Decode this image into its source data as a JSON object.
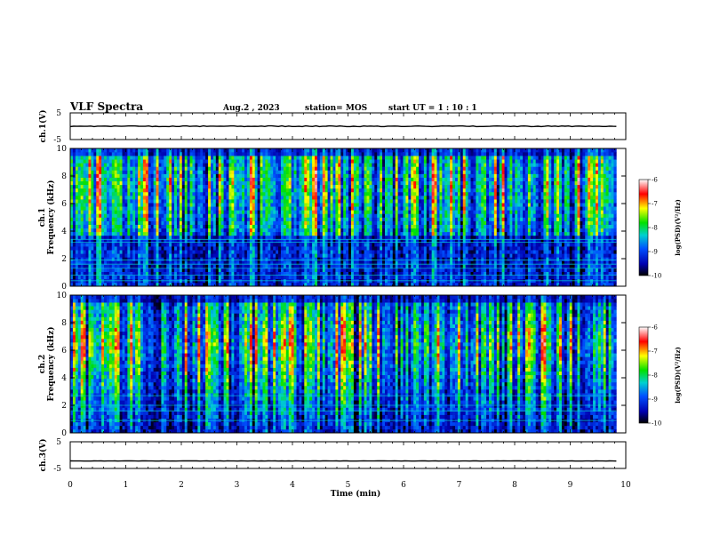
{
  "header": {
    "title": "VLF Spectra",
    "date": "Aug.2 , 2023",
    "station": "station= MOS",
    "start": "start UT = 1 : 10 : 1"
  },
  "chart_data": [
    {
      "type": "line",
      "panel": "ch1-waveform",
      "ylabel": "ch.1(V)",
      "ylim": [
        -5,
        5
      ],
      "yticks": [
        "5",
        "-5"
      ],
      "x": [
        0,
        9.83
      ],
      "y": [
        0,
        0
      ]
    },
    {
      "type": "heatmap",
      "panel": "ch1-spectrogram",
      "ylabel": [
        "ch.1",
        "Frequency (kHz)"
      ],
      "ylim": [
        0,
        10
      ],
      "yticks": [
        "0",
        "2",
        "4",
        "6",
        "8",
        "10"
      ],
      "xlim": [
        0,
        10
      ],
      "data_xmax": 9.83,
      "colorbar": {
        "label": "log(PSD)(V²/Hz)",
        "range": [
          -10,
          -6
        ],
        "ticks": [
          "-6",
          "-7",
          "-8",
          "-9",
          "-10"
        ],
        "colors": [
          "#000000",
          "#0000b0",
          "#0050ff",
          "#00d0d0",
          "#00e000",
          "#ffff00",
          "#ff0000",
          "#ffffff"
        ]
      },
      "bands_khz": [
        0.4,
        0.8,
        1.3,
        1.6,
        1.9,
        3.2,
        3.4
      ]
    },
    {
      "type": "heatmap",
      "panel": "ch2-spectrogram",
      "ylabel": [
        "ch.2",
        "Frequency (kHz)"
      ],
      "ylim": [
        0,
        10
      ],
      "yticks": [
        "0",
        "2",
        "4",
        "6",
        "8",
        "10"
      ],
      "xlim": [
        0,
        10
      ],
      "data_xmax": 9.83,
      "colorbar": {
        "label": "log(PSD)(V²/Hz)",
        "range": [
          -10,
          -6
        ],
        "ticks": [
          "-6",
          "-7",
          "-8",
          "-9",
          "-10"
        ],
        "colors": [
          "#000000",
          "#0000b0",
          "#0050ff",
          "#00d0d0",
          "#00e000",
          "#ffff00",
          "#ff0000",
          "#ffffff"
        ]
      },
      "bands_khz": [
        0.9,
        1.6,
        2.0,
        2.7
      ]
    },
    {
      "type": "line",
      "panel": "ch3-waveform",
      "ylabel": "ch.3(V)",
      "ylim": [
        -5,
        5
      ],
      "yticks": [
        "5",
        "-5"
      ],
      "x": [
        0,
        9.83
      ],
      "y": [
        -2.2,
        -2.2
      ]
    }
  ],
  "xaxis": {
    "label": "Time (min)",
    "ticks": [
      "0",
      "1",
      "2",
      "3",
      "4",
      "5",
      "6",
      "7",
      "8",
      "9",
      "10"
    ]
  }
}
